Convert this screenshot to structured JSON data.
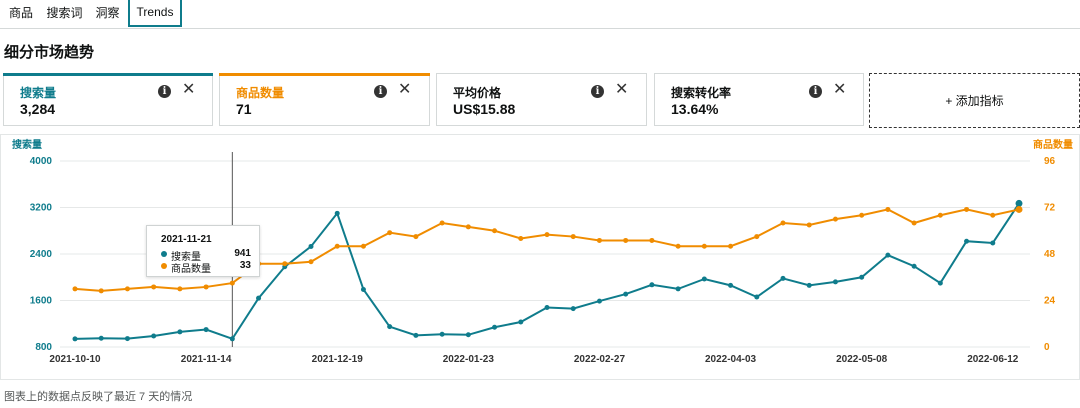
{
  "tabs": [
    {
      "label": "商品",
      "active": false
    },
    {
      "label": "搜索词",
      "active": false
    },
    {
      "label": "洞察",
      "active": false
    },
    {
      "label": "Trends",
      "active": true
    }
  ],
  "section_title": "细分市场趋势",
  "metrics": [
    {
      "label": "搜索量",
      "value": "3,284",
      "color": "#0f7c8c"
    },
    {
      "label": "商品数量",
      "value": "71",
      "color": "#f08c00"
    },
    {
      "label": "平均价格",
      "value": "US$15.88",
      "color": "#0f1111"
    },
    {
      "label": "搜索转化率",
      "value": "13.64%",
      "color": "#0f1111"
    }
  ],
  "info_glyph": "i",
  "close_glyph": "✕",
  "add_metric_label": "+ 添加指标",
  "footnote": "图表上的数据点反映了最近 7 天的情况",
  "tooltip": {
    "date": "2021-11-21",
    "rows": [
      {
        "name": "搜索量",
        "value": "941"
      },
      {
        "name": "商品数量",
        "value": "33"
      }
    ]
  },
  "chart_data": {
    "type": "line",
    "x": [
      "2021-10-10",
      "2021-10-17",
      "2021-10-24",
      "2021-10-31",
      "2021-11-07",
      "2021-11-14",
      "2021-11-21",
      "2021-11-28",
      "2021-12-05",
      "2021-12-12",
      "2021-12-19",
      "2021-12-26",
      "2022-01-02",
      "2022-01-09",
      "2022-01-16",
      "2022-01-23",
      "2022-01-30",
      "2022-02-06",
      "2022-02-13",
      "2022-02-20",
      "2022-02-27",
      "2022-03-06",
      "2022-03-13",
      "2022-03-20",
      "2022-03-27",
      "2022-04-03",
      "2022-04-10",
      "2022-04-17",
      "2022-04-24",
      "2022-05-01",
      "2022-05-08",
      "2022-05-15",
      "2022-05-22",
      "2022-05-29",
      "2022-06-05",
      "2022-06-12",
      "2022-06-19"
    ],
    "x_tick_labels": [
      "2021-10-10",
      "2021-11-14",
      "2021-12-19",
      "2022-01-23",
      "2022-02-27",
      "2022-04-03",
      "2022-05-08",
      "2022-06-12"
    ],
    "y_left": {
      "label": "搜索量",
      "range": [
        800,
        4000
      ],
      "ticks": [
        "800",
        "1600",
        "2400",
        "3200",
        "4000"
      ]
    },
    "y_right": {
      "label": "商品数量",
      "range": [
        0,
        96
      ],
      "ticks": [
        "0",
        "24",
        "48",
        "72",
        "96"
      ]
    },
    "grid": true,
    "series": [
      {
        "name": "搜索量",
        "axis": "left",
        "color": "#0f7c8c",
        "values": [
          940,
          950,
          945,
          990,
          1060,
          1100,
          941,
          1640,
          2180,
          2530,
          3100,
          1790,
          1150,
          1000,
          1020,
          1010,
          1140,
          1230,
          1480,
          1460,
          1590,
          1710,
          1870,
          1800,
          1970,
          1860,
          1660,
          1980,
          1860,
          1920,
          2000,
          2380,
          2190,
          1900,
          2620,
          2590,
          3270
        ]
      },
      {
        "name": "商品数量",
        "axis": "right",
        "color": "#f08c00",
        "values": [
          30,
          29,
          30,
          31,
          30,
          31,
          33,
          43,
          43,
          44,
          52,
          52,
          59,
          57,
          64,
          62,
          60,
          56,
          58,
          57,
          55,
          55,
          55,
          52,
          52,
          52,
          57,
          64,
          63,
          66,
          68,
          71,
          64,
          68,
          71,
          68,
          71
        ]
      }
    ]
  }
}
